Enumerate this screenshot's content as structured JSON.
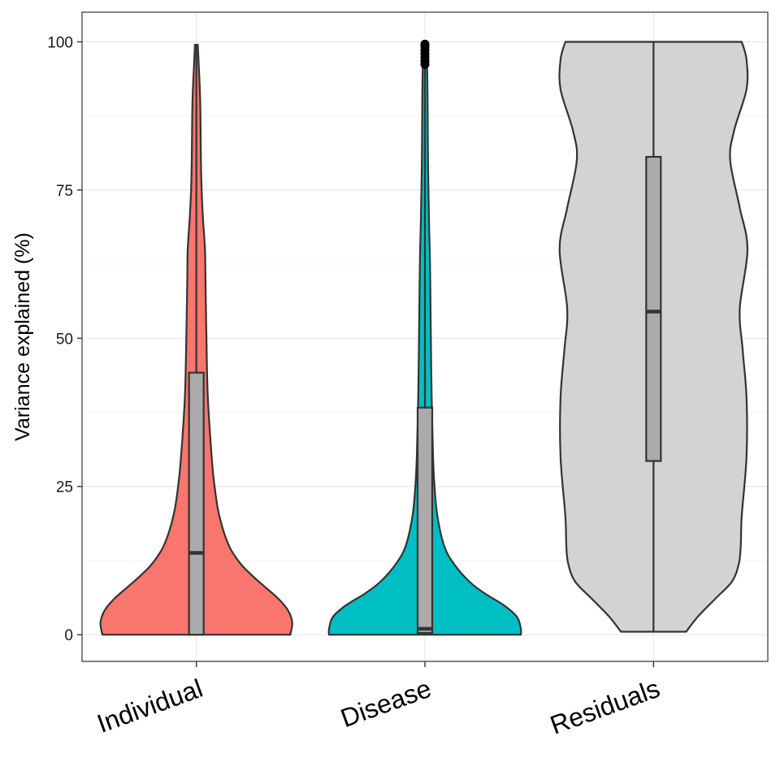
{
  "chart_data": {
    "type": "violin",
    "title": "",
    "xlabel": "",
    "ylabel": "Variance explained (%)",
    "ylim": [
      -4.5,
      105
    ],
    "yticks": [
      0,
      25,
      50,
      75,
      100
    ],
    "grid": true,
    "legend": "none",
    "categories": [
      "Individual",
      "Disease",
      "Residuals"
    ],
    "series": [
      {
        "category": "Individual",
        "color": "#F8766D",
        "range": [
          0,
          99.5
        ],
        "box": {
          "q1": 0,
          "median": 13.8,
          "q3": 44.2,
          "whisker_low": 0,
          "whisker_high": 99.5
        },
        "outliers": [],
        "density_profile": [
          [
            0,
            0.98
          ],
          [
            2,
            1.0
          ],
          [
            4,
            0.96
          ],
          [
            6,
            0.86
          ],
          [
            8,
            0.72
          ],
          [
            10,
            0.58
          ],
          [
            12,
            0.46
          ],
          [
            15,
            0.34
          ],
          [
            20,
            0.24
          ],
          [
            25,
            0.19
          ],
          [
            30,
            0.16
          ],
          [
            40,
            0.12
          ],
          [
            50,
            0.105
          ],
          [
            60,
            0.095
          ],
          [
            65,
            0.09
          ],
          [
            70,
            0.07
          ],
          [
            75,
            0.055
          ],
          [
            80,
            0.048
          ],
          [
            90,
            0.04
          ],
          [
            97,
            0.022
          ],
          [
            99.5,
            0.015
          ]
        ]
      },
      {
        "category": "Disease",
        "color": "#00BFC4",
        "range": [
          0,
          99.5
        ],
        "box": {
          "q1": 0.3,
          "median": 1.0,
          "q3": 38.3,
          "whisker_low": 0,
          "whisker_high": 95.8
        },
        "outliers": [
          96.2,
          96.8,
          97.4,
          98.0,
          98.6,
          99.2,
          99.6
        ],
        "density_profile": [
          [
            0,
            1.0
          ],
          [
            1,
            1.0
          ],
          [
            3,
            0.96
          ],
          [
            5,
            0.82
          ],
          [
            7,
            0.62
          ],
          [
            9,
            0.46
          ],
          [
            12,
            0.3
          ],
          [
            15,
            0.2
          ],
          [
            20,
            0.13
          ],
          [
            25,
            0.1
          ],
          [
            30,
            0.085
          ],
          [
            40,
            0.07
          ],
          [
            50,
            0.062
          ],
          [
            60,
            0.055
          ],
          [
            65,
            0.05
          ],
          [
            70,
            0.042
          ],
          [
            80,
            0.032
          ],
          [
            90,
            0.028
          ],
          [
            96,
            0.022
          ],
          [
            99.5,
            0.008
          ]
        ]
      },
      {
        "category": "Residuals",
        "color": "#D3D3D3",
        "range": [
          0.5,
          100
        ],
        "box": {
          "q1": 29.3,
          "median": 54.5,
          "q3": 80.6,
          "whisker_low": 0.5,
          "whisker_high": 100
        },
        "outliers": [],
        "density_profile": [
          [
            0.5,
            0.34
          ],
          [
            3,
            0.46
          ],
          [
            6,
            0.64
          ],
          [
            9,
            0.82
          ],
          [
            12,
            0.89
          ],
          [
            15,
            0.91
          ],
          [
            20,
            0.92
          ],
          [
            30,
            0.97
          ],
          [
            40,
            0.97
          ],
          [
            48,
            0.93
          ],
          [
            55,
            0.9
          ],
          [
            65,
            0.98
          ],
          [
            72,
            0.9
          ],
          [
            80,
            0.8
          ],
          [
            85,
            0.84
          ],
          [
            92,
            0.97
          ],
          [
            97,
            0.97
          ],
          [
            100,
            0.92
          ]
        ]
      }
    ]
  }
}
